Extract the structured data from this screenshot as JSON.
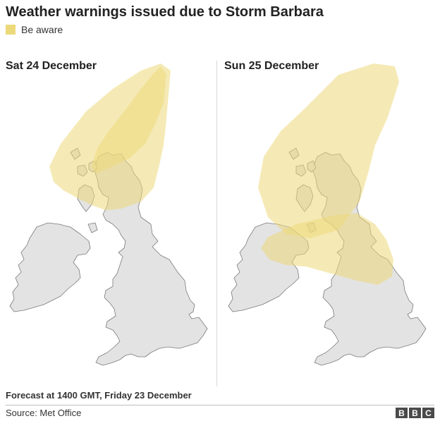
{
  "title": "Weather warnings issued due to Storm Barbara",
  "legend": {
    "label": "Be aware",
    "color": "#ecd97a"
  },
  "colors": {
    "land": "#e3e3e3",
    "coast": "#7a7a7a",
    "warning": "#ecd97a"
  },
  "panels": [
    {
      "label": "Sat 24 December"
    },
    {
      "label": "Sun 25 December"
    }
  ],
  "forecast_note": "Forecast at 1400 GMT, Friday 23 December",
  "source": "Source: Met Office",
  "logo": [
    "B",
    "B",
    "C"
  ]
}
